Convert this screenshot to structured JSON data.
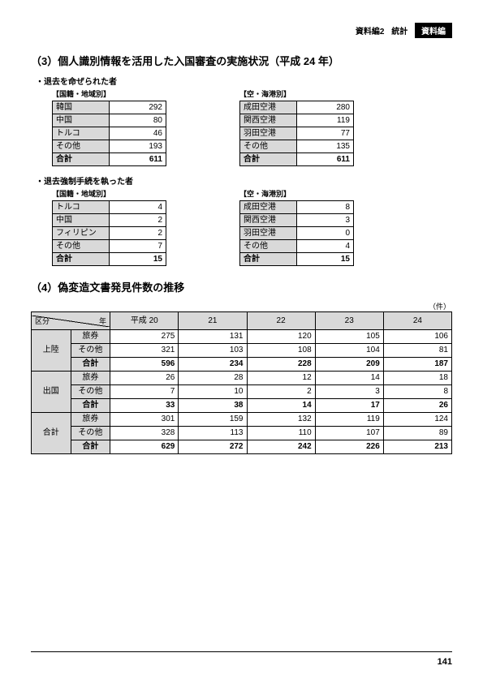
{
  "header": {
    "label1": "資料編2",
    "label2": "統計",
    "boxlabel": "資料編"
  },
  "section3": {
    "title": "（3）個人識別情報を活用した入国審査の実施状況（平成 24 年）",
    "groupA": {
      "subhead": "・退去を命ぜられた者",
      "left": {
        "colhead": "【国籍・地域別】",
        "rows": [
          {
            "label": "韓国",
            "value": "292"
          },
          {
            "label": "中国",
            "value": "80"
          },
          {
            "label": "トルコ",
            "value": "46"
          },
          {
            "label": "その他",
            "value": "193"
          }
        ],
        "total": {
          "label": "合計",
          "value": "611"
        }
      },
      "right": {
        "colhead": "【空・海港別】",
        "rows": [
          {
            "label": "成田空港",
            "value": "280"
          },
          {
            "label": "関西空港",
            "value": "119"
          },
          {
            "label": "羽田空港",
            "value": "77"
          },
          {
            "label": "その他",
            "value": "135"
          }
        ],
        "total": {
          "label": "合計",
          "value": "611"
        }
      }
    },
    "groupB": {
      "subhead": "・退去強制手続を執った者",
      "left": {
        "colhead": "【国籍・地域別】",
        "rows": [
          {
            "label": "トルコ",
            "value": "4"
          },
          {
            "label": "中国",
            "value": "2"
          },
          {
            "label": "フィリピン",
            "value": "2"
          },
          {
            "label": "その他",
            "value": "7"
          }
        ],
        "total": {
          "label": "合計",
          "value": "15"
        }
      },
      "right": {
        "colhead": "【空・海港別】",
        "rows": [
          {
            "label": "成田空港",
            "value": "8"
          },
          {
            "label": "関西空港",
            "value": "3"
          },
          {
            "label": "羽田空港",
            "value": "0"
          },
          {
            "label": "その他",
            "value": "4"
          }
        ],
        "total": {
          "label": "合計",
          "value": "15"
        }
      }
    }
  },
  "section4": {
    "title": "（4）偽変造文書発見件数の推移",
    "unit": "（件）",
    "diag": {
      "year": "年",
      "kubun": "区分"
    },
    "years": [
      "平成 20",
      "21",
      "22",
      "23",
      "24"
    ],
    "blocks": [
      {
        "cat": "上陸",
        "rows": [
          {
            "sub": "旅券",
            "vals": [
              "275",
              "131",
              "120",
              "105",
              "106"
            ]
          },
          {
            "sub": "その他",
            "vals": [
              "321",
              "103",
              "108",
              "104",
              "81"
            ]
          }
        ],
        "total": {
          "sub": "合計",
          "vals": [
            "596",
            "234",
            "228",
            "209",
            "187"
          ]
        }
      },
      {
        "cat": "出国",
        "rows": [
          {
            "sub": "旅券",
            "vals": [
              "26",
              "28",
              "12",
              "14",
              "18"
            ]
          },
          {
            "sub": "その他",
            "vals": [
              "7",
              "10",
              "2",
              "3",
              "8"
            ]
          }
        ],
        "total": {
          "sub": "合計",
          "vals": [
            "33",
            "38",
            "14",
            "17",
            "26"
          ]
        }
      },
      {
        "cat": "合計",
        "rows": [
          {
            "sub": "旅券",
            "vals": [
              "301",
              "159",
              "132",
              "119",
              "124"
            ]
          },
          {
            "sub": "その他",
            "vals": [
              "328",
              "113",
              "110",
              "107",
              "89"
            ]
          }
        ],
        "total": {
          "sub": "合計",
          "vals": [
            "629",
            "272",
            "242",
            "226",
            "213"
          ]
        }
      }
    ]
  },
  "page_number": "141"
}
